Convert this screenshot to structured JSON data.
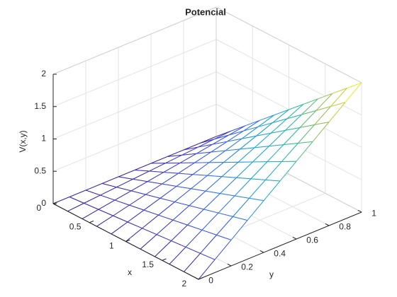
{
  "chart_data": {
    "type": "mesh",
    "title": "Potencial",
    "xlabel": "x",
    "ylabel": "y",
    "zlabel": "V(x,y)",
    "x": [
      0,
      0.2,
      0.4,
      0.6,
      0.8,
      1,
      1.2,
      1.4,
      1.6,
      1.8,
      2
    ],
    "y": [
      0,
      0.1,
      0.2,
      0.3,
      0.4,
      0.5,
      0.6,
      0.7,
      0.8,
      0.9,
      1
    ],
    "z": [
      [
        0,
        0,
        0,
        0,
        0,
        0,
        0,
        0,
        0,
        0,
        0
      ],
      [
        0,
        0.02,
        0.04,
        0.06,
        0.08,
        0.1,
        0.12,
        0.14,
        0.16,
        0.18,
        0.2
      ],
      [
        0,
        0.04,
        0.08,
        0.12,
        0.16,
        0.2,
        0.24,
        0.28,
        0.32,
        0.36,
        0.4
      ],
      [
        0,
        0.06,
        0.12,
        0.18,
        0.24,
        0.3,
        0.36,
        0.42,
        0.48,
        0.54,
        0.6
      ],
      [
        0,
        0.08,
        0.16,
        0.24,
        0.32,
        0.4,
        0.48,
        0.56,
        0.64,
        0.72,
        0.8
      ],
      [
        0,
        0.1,
        0.2,
        0.3,
        0.4,
        0.5,
        0.6,
        0.7,
        0.8,
        0.9,
        1
      ],
      [
        0,
        0.12,
        0.24,
        0.36,
        0.48,
        0.6,
        0.72,
        0.84,
        0.96,
        1.08,
        1.2
      ],
      [
        0,
        0.14,
        0.28,
        0.42,
        0.56,
        0.7,
        0.84,
        0.98,
        1.12,
        1.26,
        1.4
      ],
      [
        0,
        0.16,
        0.32,
        0.48,
        0.64,
        0.8,
        0.96,
        1.12,
        1.28,
        1.44,
        1.6
      ],
      [
        0,
        0.18,
        0.36,
        0.54,
        0.72,
        0.9,
        1.08,
        1.26,
        1.44,
        1.62,
        1.8
      ],
      [
        0,
        0.2,
        0.4,
        0.6,
        0.8,
        1,
        1.2,
        1.4,
        1.6,
        1.8,
        2
      ]
    ],
    "xlim": [
      0,
      2
    ],
    "ylim": [
      0,
      1
    ],
    "zlim": [
      0,
      2
    ],
    "xticks": [
      0,
      0.5,
      1,
      1.5,
      2
    ],
    "yticks": [
      0,
      0.2,
      0.4,
      0.6,
      0.8,
      1
    ],
    "zticks": [
      0,
      0.5,
      1,
      1.5,
      2
    ],
    "grid": true,
    "colormap": "parula"
  }
}
